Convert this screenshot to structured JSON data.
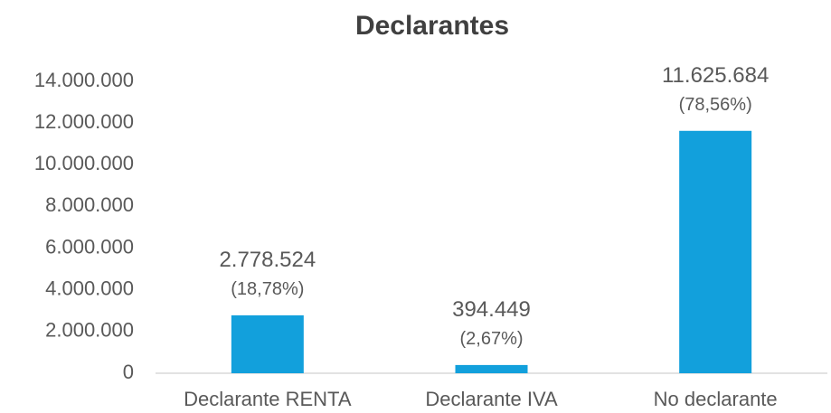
{
  "chart_data": {
    "type": "bar",
    "title": "Declarantes",
    "categories": [
      "Declarante RENTA",
      "Declarante IVA",
      "No declarante"
    ],
    "values": [
      2778524,
      394449,
      11625684
    ],
    "value_labels": [
      "2.778.524",
      "394.449",
      "11.625.684"
    ],
    "percent_labels": [
      "(18,78%)",
      "(2,67%)",
      "(78,56%)"
    ],
    "color": "#12a0dc",
    "ylim": [
      0,
      14000000
    ],
    "yticks": [
      0,
      {
        "value": 2000000,
        "label": "2.000.000"
      },
      {
        "value": 4000000,
        "label": "4.000.000"
      },
      {
        "value": 6000000,
        "label": "6.000.000"
      },
      {
        "value": 8000000,
        "label": "8.000.000"
      },
      {
        "value": 10000000,
        "label": "10.000.000"
      },
      {
        "value": 12000000,
        "label": "12.000.000"
      },
      {
        "value": 14000000,
        "label": "14.000.000"
      }
    ],
    "grid": false
  }
}
